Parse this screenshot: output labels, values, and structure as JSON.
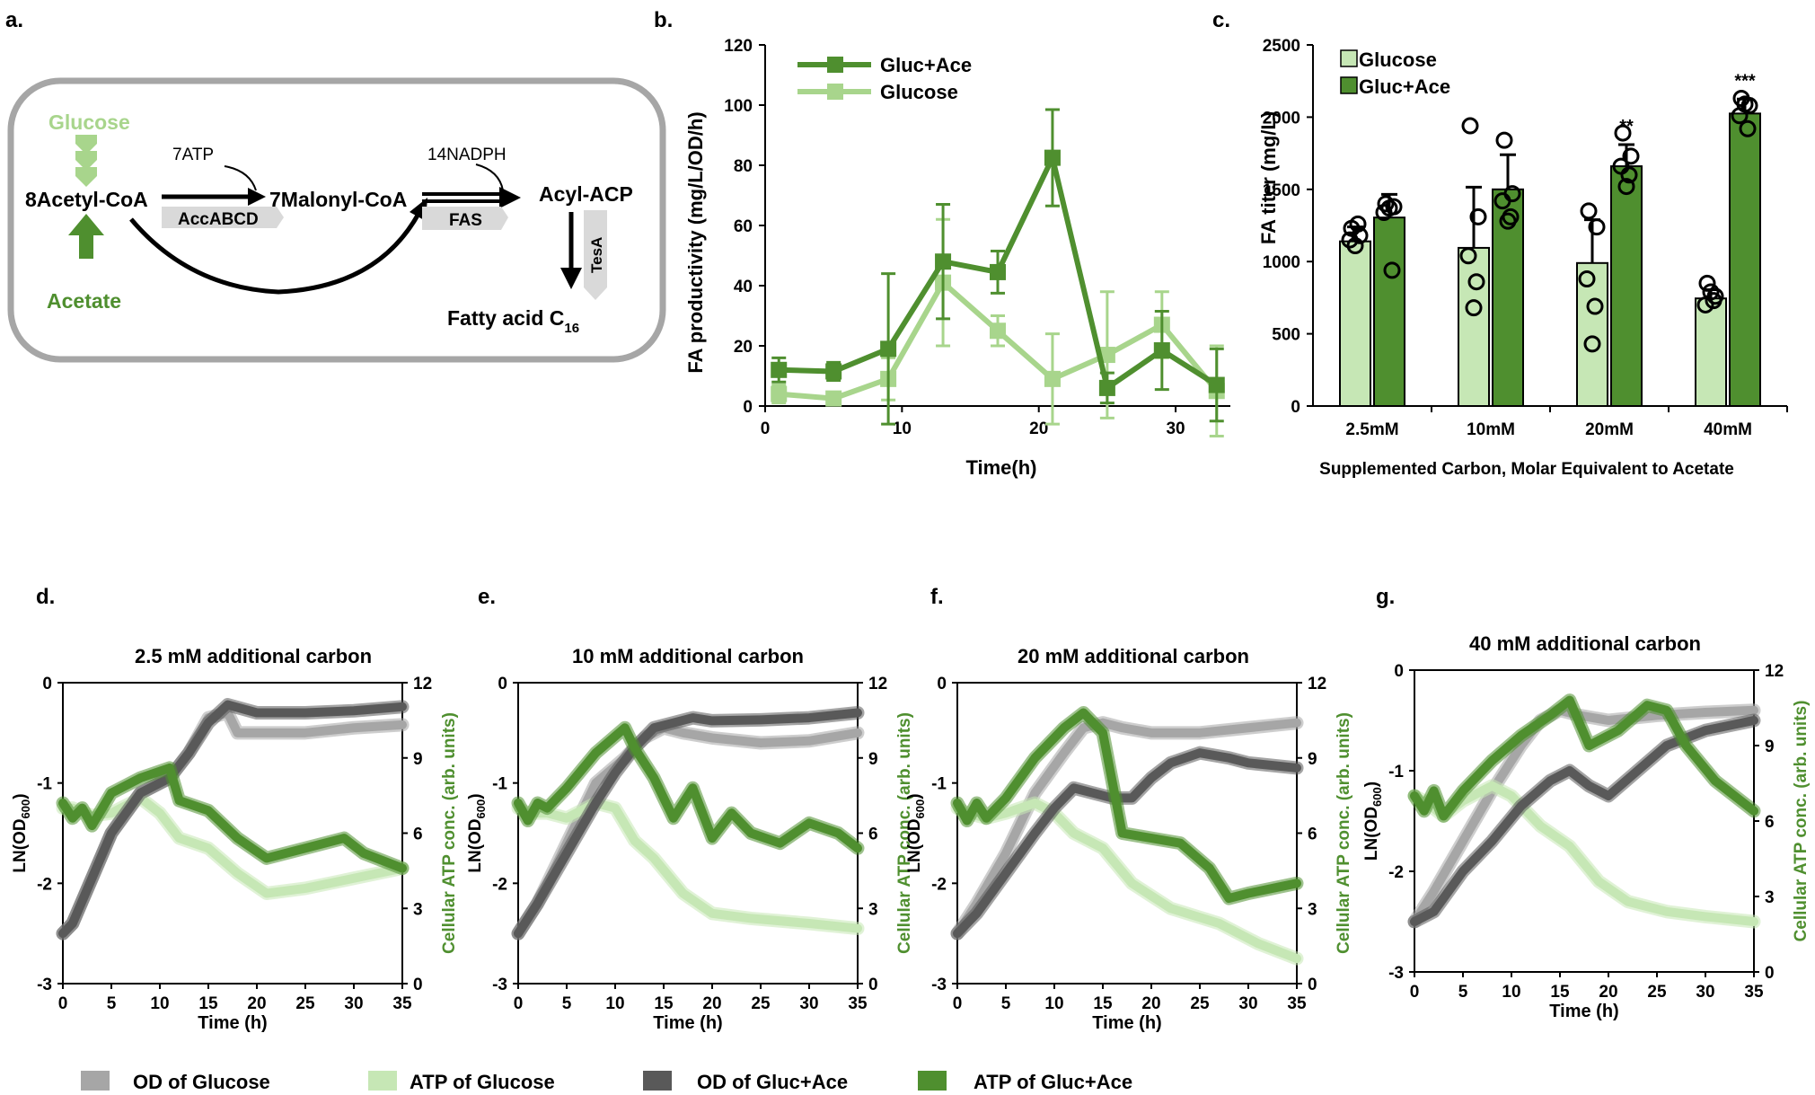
{
  "panel_a": {
    "letter": "a.",
    "glucose": "Glucose",
    "acetate": "Acetate",
    "acetyl_coa": "8Acetyl-CoA",
    "malonyl_coa": "7Malonyl-CoA",
    "acyl_acp": "Acyl-ACP",
    "atp": "7ATP",
    "nadph": "14NADPH",
    "accabcd": "AccABCD",
    "fas": "FAS",
    "tesa": "TesA",
    "fatty_acid": "Fatty acid C",
    "fatty_acid_sub": "16",
    "colors": {
      "glucose": "#a8d58c",
      "acetate": "#4f8f2f"
    }
  },
  "chart_data": [
    {
      "id": "b",
      "letter": "b.",
      "type": "line",
      "xlabel": "Time(h)",
      "ylabel": "FA productivity (mg/L/OD/h)",
      "xlim": [
        0,
        34
      ],
      "ylim": [
        0,
        120
      ],
      "xticks": [
        0,
        10,
        20,
        30
      ],
      "yticks": [
        0,
        20,
        40,
        60,
        80,
        100,
        120
      ],
      "series": [
        {
          "name": "Gluc+Ace",
          "color": "#4f8f2f",
          "x": [
            1,
            5,
            9,
            13,
            17,
            21,
            25,
            29,
            33
          ],
          "y": [
            12,
            11.5,
            19,
            48,
            44.5,
            82.5,
            6,
            18.5,
            7
          ],
          "err": [
            4,
            3,
            25,
            19,
            7,
            16,
            5,
            13,
            12
          ]
        },
        {
          "name": "Glucose",
          "color": "#a8d58c",
          "x": [
            1,
            5,
            9,
            13,
            17,
            21,
            25,
            29,
            33
          ],
          "y": [
            4,
            2.5,
            9,
            41,
            25,
            9,
            17,
            27,
            5
          ],
          "err": [
            3,
            2,
            7,
            21,
            5,
            15,
            21,
            11,
            15
          ]
        }
      ]
    },
    {
      "id": "c",
      "letter": "c.",
      "type": "bar",
      "xlabel": "Supplemented Carbon, Molar Equivalent to Acetate",
      "ylabel": "FA titer (mg/L)",
      "ylim": [
        0,
        2500
      ],
      "yticks": [
        0,
        500,
        1000,
        1500,
        2000,
        2500
      ],
      "categories": [
        "2.5mM",
        "10mM",
        "20mM",
        "40mM"
      ],
      "significance": [
        "",
        "",
        "**",
        "***"
      ],
      "series": [
        {
          "name": "Glucose",
          "color": "#c6e7b5",
          "values": [
            1140,
            1095,
            990,
            745
          ],
          "err": [
            100,
            420,
            300,
            60
          ],
          "points": [
            [
              1230,
              1180,
              1150,
              1260,
              1110
            ],
            [
              1940,
              1310,
              1040,
              860,
              680
            ],
            [
              1350,
              1240,
              880,
              690,
              430
            ],
            [
              850,
              760,
              700,
              730,
              790
            ]
          ]
        },
        {
          "name": "Gluc+Ace",
          "color": "#4f8f2f",
          "values": [
            1305,
            1500,
            1660,
            2025
          ],
          "err": [
            160,
            240,
            150,
            100
          ],
          "points": [
            [
              1400,
              1380,
              1340,
              940,
              1370
            ],
            [
              1840,
              1470,
              1420,
              1310,
              1280
            ],
            [
              1890,
              1730,
              1660,
              1600,
              1520
            ],
            [
              2130,
              2080,
              2010,
              1920,
              2090
            ]
          ]
        }
      ]
    },
    {
      "id": "d",
      "letter": "d.",
      "type": "line",
      "title": "2.5 mM additional carbon",
      "xlabel": "Time (h)",
      "ylabel_left": "LN(OD",
      "ylabel_left_sub": "600",
      "ylabel_left_end": ")",
      "ylabel_right": "Cellular ATP conc. (arb. units)",
      "xlim": [
        0,
        35
      ],
      "ylim_left": [
        -3,
        0
      ],
      "ylim_right": [
        0,
        12
      ],
      "xticks": [
        0,
        5,
        10,
        15,
        20,
        25,
        30,
        35
      ],
      "yticks_left": [
        0,
        -1,
        -2,
        -3
      ],
      "yticks_right": [
        0,
        3,
        6,
        9,
        12
      ],
      "series": [
        {
          "name": "OD of Glucose",
          "axis": "left",
          "color": "#a6a6a6",
          "x": [
            0,
            1,
            3,
            5,
            8,
            11,
            13,
            15,
            17,
            18,
            20,
            25,
            30,
            35
          ],
          "y": [
            -2.5,
            -2.4,
            -1.95,
            -1.5,
            -1.1,
            -0.95,
            -0.7,
            -0.35,
            -0.3,
            -0.5,
            -0.5,
            -0.5,
            -0.45,
            -0.42
          ]
        },
        {
          "name": "ATP of Glucose",
          "axis": "right",
          "color": "#c6e7b5",
          "x": [
            0,
            1,
            3,
            5,
            8,
            10,
            12,
            15,
            18,
            21,
            25,
            30,
            35
          ],
          "y": [
            7,
            7,
            6.7,
            6.8,
            7.4,
            6.8,
            5.8,
            5.4,
            4.4,
            3.6,
            3.8,
            4.2,
            4.6
          ]
        },
        {
          "name": "OD of Gluc+Ace",
          "axis": "left",
          "color": "#595959",
          "x": [
            0,
            1,
            3,
            5,
            8,
            11,
            13,
            15,
            17,
            20,
            25,
            30,
            35
          ],
          "y": [
            -2.5,
            -2.4,
            -1.95,
            -1.5,
            -1.1,
            -0.95,
            -0.7,
            -0.4,
            -0.22,
            -0.3,
            -0.3,
            -0.28,
            -0.24
          ]
        },
        {
          "name": "ATP of Gluc+Ace",
          "axis": "right",
          "color": "#4f8f2f",
          "x": [
            0,
            1,
            2,
            3,
            5,
            8,
            11,
            12,
            15,
            18,
            21,
            25,
            29,
            31,
            35
          ],
          "y": [
            7.2,
            6.6,
            7,
            6.3,
            7.6,
            8.2,
            8.6,
            7.3,
            6.9,
            5.8,
            5,
            5.4,
            5.8,
            5.2,
            4.6
          ]
        }
      ]
    },
    {
      "id": "e",
      "letter": "e.",
      "type": "line",
      "title": "10 mM additional carbon",
      "xlabel": "Time (h)",
      "ylabel_left": "LN(OD",
      "ylabel_left_sub": "600",
      "ylabel_left_end": ")",
      "ylabel_right": "Cellular ATP conc. (arb. units)",
      "xlim": [
        0,
        35
      ],
      "ylim_left": [
        -3,
        0
      ],
      "ylim_right": [
        0,
        12
      ],
      "xticks": [
        0,
        5,
        10,
        15,
        20,
        25,
        30,
        35
      ],
      "yticks_left": [
        0,
        -1,
        -2,
        -3
      ],
      "yticks_right": [
        0,
        3,
        6,
        9,
        12
      ],
      "series": [
        {
          "name": "OD of Glucose",
          "axis": "left",
          "color": "#a6a6a6",
          "x": [
            0,
            2,
            5,
            8,
            11,
            13,
            15,
            17,
            20,
            25,
            30,
            35
          ],
          "y": [
            -2.5,
            -2.2,
            -1.6,
            -1.0,
            -0.75,
            -0.55,
            -0.45,
            -0.5,
            -0.55,
            -0.6,
            -0.58,
            -0.5
          ]
        },
        {
          "name": "ATP of Glucose",
          "axis": "right",
          "color": "#c6e7b5",
          "x": [
            0,
            1,
            3,
            5,
            8,
            10,
            12,
            14,
            17,
            20,
            24,
            30,
            35
          ],
          "y": [
            7,
            6.8,
            6.8,
            6.6,
            7.2,
            7.0,
            5.7,
            5.0,
            3.6,
            2.8,
            2.6,
            2.4,
            2.2
          ]
        },
        {
          "name": "OD of Gluc+Ace",
          "axis": "left",
          "color": "#595959",
          "x": [
            0,
            2,
            5,
            8,
            10,
            12,
            14,
            16,
            18,
            20,
            25,
            30,
            35
          ],
          "y": [
            -2.5,
            -2.2,
            -1.7,
            -1.2,
            -0.9,
            -0.65,
            -0.45,
            -0.4,
            -0.35,
            -0.38,
            -0.37,
            -0.35,
            -0.3
          ]
        },
        {
          "name": "ATP of Gluc+Ace",
          "axis": "right",
          "color": "#4f8f2f",
          "x": [
            0,
            1,
            2,
            3,
            5,
            8,
            11,
            12,
            14,
            16,
            18,
            20,
            22,
            24,
            27,
            30,
            33,
            35
          ],
          "y": [
            7.2,
            6.5,
            7.2,
            7.0,
            7.8,
            9.2,
            10.2,
            9.4,
            8.2,
            6.6,
            7.8,
            5.8,
            6.8,
            6.0,
            5.6,
            6.4,
            6.0,
            5.4
          ]
        }
      ]
    },
    {
      "id": "f",
      "letter": "f.",
      "type": "line",
      "title": "20 mM additional carbon",
      "xlabel": "Time (h)",
      "ylabel_left": "LN(OD",
      "ylabel_left_sub": "600",
      "ylabel_left_end": ")",
      "ylabel_right": "Cellular ATP conc. (arb. units)",
      "xlim": [
        0,
        35
      ],
      "ylim_left": [
        -3,
        0
      ],
      "ylim_right": [
        0,
        12
      ],
      "xticks": [
        0,
        5,
        10,
        15,
        20,
        25,
        30,
        35
      ],
      "yticks_left": [
        0,
        -1,
        -2,
        -3
      ],
      "yticks_right": [
        0,
        3,
        6,
        9,
        12
      ],
      "series": [
        {
          "name": "OD of Glucose",
          "axis": "left",
          "color": "#a6a6a6",
          "x": [
            0,
            2,
            5,
            8,
            11,
            13,
            15,
            17,
            20,
            25,
            30,
            35
          ],
          "y": [
            -2.5,
            -2.2,
            -1.7,
            -1.1,
            -0.7,
            -0.45,
            -0.4,
            -0.45,
            -0.5,
            -0.5,
            -0.45,
            -0.4
          ]
        },
        {
          "name": "ATP of Glucose",
          "axis": "right",
          "color": "#c6e7b5",
          "x": [
            0,
            1,
            3,
            5,
            8,
            10,
            12,
            15,
            18,
            22,
            27,
            31,
            35
          ],
          "y": [
            7,
            6.8,
            6.6,
            6.8,
            7.2,
            6.8,
            6.0,
            5.4,
            4.0,
            3.0,
            2.4,
            1.6,
            1.0
          ]
        },
        {
          "name": "OD of Gluc+Ace",
          "axis": "left",
          "color": "#595959",
          "x": [
            0,
            2,
            5,
            8,
            10,
            12,
            14,
            16,
            18,
            20,
            22,
            25,
            28,
            30,
            35
          ],
          "y": [
            -2.5,
            -2.3,
            -1.9,
            -1.5,
            -1.25,
            -1.05,
            -1.1,
            -1.15,
            -1.15,
            -0.95,
            -0.8,
            -0.7,
            -0.75,
            -0.8,
            -0.85
          ]
        },
        {
          "name": "ATP of Gluc+Ace",
          "axis": "right",
          "color": "#4f8f2f",
          "x": [
            0,
            1,
            2,
            3,
            5,
            8,
            11,
            13,
            15,
            17,
            20,
            23,
            26,
            28,
            30,
            35
          ],
          "y": [
            7.2,
            6.5,
            7.2,
            6.6,
            7.4,
            9.0,
            10.2,
            10.8,
            10.0,
            6.0,
            5.8,
            5.6,
            4.6,
            3.4,
            3.6,
            4.0
          ]
        }
      ]
    },
    {
      "id": "g",
      "letter": "g.",
      "type": "line",
      "title": "40 mM additional carbon",
      "xlabel": "Time (h)",
      "ylabel_left": "LN(OD",
      "ylabel_left_sub": "600",
      "ylabel_left_end": ")",
      "ylabel_right": "Cellular ATP conc. (arb. units)",
      "xlim": [
        0,
        35
      ],
      "ylim_left": [
        -3,
        0
      ],
      "ylim_right": [
        0,
        12
      ],
      "xticks": [
        0,
        5,
        10,
        15,
        20,
        25,
        30,
        35
      ],
      "yticks_left": [
        0,
        -1,
        -2,
        -3
      ],
      "yticks_right": [
        0,
        3,
        6,
        9,
        12
      ],
      "series": [
        {
          "name": "OD of Glucose",
          "axis": "left",
          "color": "#a6a6a6",
          "x": [
            0,
            2,
            5,
            8,
            11,
            13,
            15,
            17,
            20,
            25,
            30,
            35
          ],
          "y": [
            -2.5,
            -2.2,
            -1.7,
            -1.2,
            -0.75,
            -0.5,
            -0.4,
            -0.45,
            -0.5,
            -0.45,
            -0.42,
            -0.4
          ]
        },
        {
          "name": "ATP of Glucose",
          "axis": "right",
          "color": "#c6e7b5",
          "x": [
            0,
            1,
            3,
            5,
            8,
            10,
            13,
            16,
            19,
            22,
            26,
            30,
            35
          ],
          "y": [
            7,
            6.8,
            6.2,
            6.8,
            7.4,
            7.0,
            5.8,
            5.0,
            3.6,
            2.8,
            2.4,
            2.2,
            2.0
          ]
        },
        {
          "name": "OD of Gluc+Ace",
          "axis": "left",
          "color": "#595959",
          "x": [
            0,
            2,
            5,
            8,
            11,
            14,
            16,
            18,
            20,
            23,
            26,
            30,
            35
          ],
          "y": [
            -2.5,
            -2.4,
            -2.0,
            -1.7,
            -1.35,
            -1.1,
            -1.0,
            -1.15,
            -1.25,
            -1.0,
            -0.75,
            -0.6,
            -0.5
          ]
        },
        {
          "name": "ATP of Gluc+Ace",
          "axis": "right",
          "color": "#4f8f2f",
          "x": [
            0,
            1,
            2,
            3,
            5,
            8,
            11,
            14,
            16,
            18,
            21,
            24,
            26,
            28,
            31,
            35
          ],
          "y": [
            7.0,
            6.4,
            7.2,
            6.2,
            7.2,
            8.4,
            9.4,
            10.2,
            10.8,
            9.0,
            9.6,
            10.6,
            10.4,
            9.0,
            7.6,
            6.4
          ]
        }
      ]
    }
  ],
  "bottom_legend": [
    {
      "label": "OD of Glucose",
      "color": "#a6a6a6"
    },
    {
      "label": "ATP of Glucose",
      "color": "#c6e7b5"
    },
    {
      "label": "OD of Gluc+Ace",
      "color": "#595959"
    },
    {
      "label": "ATP of Gluc+Ace",
      "color": "#4f8f2f"
    }
  ]
}
